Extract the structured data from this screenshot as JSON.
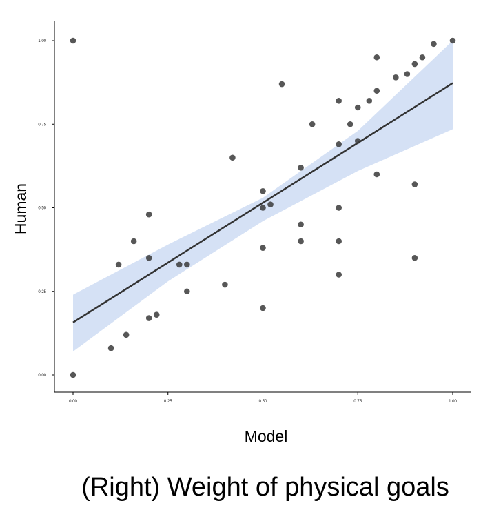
{
  "chart_data": {
    "type": "scatter",
    "caption": "(Right) Weight of physical goals",
    "xlabel": "Model",
    "ylabel": "Human",
    "xlim": [
      0,
      1
    ],
    "ylim": [
      0,
      1
    ],
    "x_ticks": [
      "0.00",
      "0.25",
      "0.50",
      "0.75",
      "1.00"
    ],
    "y_ticks": [
      "0.00",
      "0.25",
      "0.50",
      "0.75",
      "1.00"
    ],
    "grid": false,
    "series": [
      {
        "points": [
          {
            "x": 0.0,
            "y": 1.0
          },
          {
            "x": 0.0,
            "y": 0.0
          },
          {
            "x": 0.1,
            "y": 0.08
          },
          {
            "x": 0.12,
            "y": 0.33
          },
          {
            "x": 0.14,
            "y": 0.12
          },
          {
            "x": 0.16,
            "y": 0.4
          },
          {
            "x": 0.2,
            "y": 0.48
          },
          {
            "x": 0.2,
            "y": 0.35
          },
          {
            "x": 0.2,
            "y": 0.17
          },
          {
            "x": 0.22,
            "y": 0.18
          },
          {
            "x": 0.28,
            "y": 0.33
          },
          {
            "x": 0.3,
            "y": 0.33
          },
          {
            "x": 0.3,
            "y": 0.25
          },
          {
            "x": 0.4,
            "y": 0.27
          },
          {
            "x": 0.42,
            "y": 0.65
          },
          {
            "x": 0.5,
            "y": 0.55
          },
          {
            "x": 0.5,
            "y": 0.5
          },
          {
            "x": 0.52,
            "y": 0.51
          },
          {
            "x": 0.5,
            "y": 0.38
          },
          {
            "x": 0.5,
            "y": 0.2
          },
          {
            "x": 0.55,
            "y": 0.87
          },
          {
            "x": 0.6,
            "y": 0.62
          },
          {
            "x": 0.6,
            "y": 0.45
          },
          {
            "x": 0.6,
            "y": 0.4
          },
          {
            "x": 0.63,
            "y": 0.75
          },
          {
            "x": 0.7,
            "y": 0.82
          },
          {
            "x": 0.7,
            "y": 0.69
          },
          {
            "x": 0.7,
            "y": 0.5
          },
          {
            "x": 0.7,
            "y": 0.4
          },
          {
            "x": 0.7,
            "y": 0.3
          },
          {
            "x": 0.73,
            "y": 0.75
          },
          {
            "x": 0.75,
            "y": 0.8
          },
          {
            "x": 0.75,
            "y": 0.7
          },
          {
            "x": 0.78,
            "y": 0.82
          },
          {
            "x": 0.8,
            "y": 0.95
          },
          {
            "x": 0.8,
            "y": 0.85
          },
          {
            "x": 0.8,
            "y": 0.6
          },
          {
            "x": 0.85,
            "y": 0.89
          },
          {
            "x": 0.88,
            "y": 0.9
          },
          {
            "x": 0.9,
            "y": 0.93
          },
          {
            "x": 0.9,
            "y": 0.57
          },
          {
            "x": 0.9,
            "y": 0.35
          },
          {
            "x": 0.92,
            "y": 0.95
          },
          {
            "x": 0.95,
            "y": 0.99
          },
          {
            "x": 1.0,
            "y": 1.0
          }
        ]
      }
    ],
    "fit_line": {
      "intercept": 0.157,
      "slope": 0.716
    },
    "confidence_band": {
      "x": [
        0.0,
        0.25,
        0.5,
        0.75,
        1.0
      ],
      "lower": [
        0.07,
        0.28,
        0.46,
        0.61,
        0.735
      ],
      "upper": [
        0.24,
        0.39,
        0.53,
        0.73,
        1.0
      ]
    },
    "colors": {
      "points": "#3a3a3a",
      "fit_line": "#333333",
      "band": "#d5e1f5",
      "axis": "#000000"
    }
  }
}
